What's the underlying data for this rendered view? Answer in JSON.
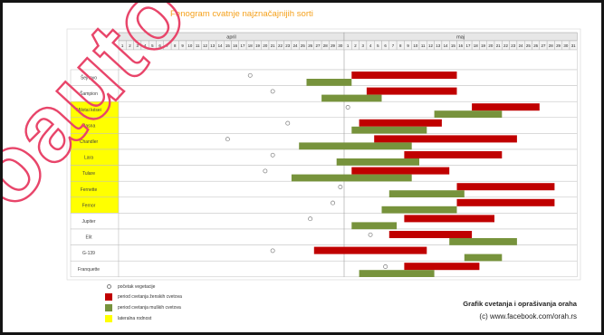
{
  "slide": {
    "title_color": "#f5a11c",
    "footer_title": "Grafik cvetanja i oprašivanja oraha",
    "footer_credit": "(c) www.facebook.com/orah.rs"
  },
  "watermark": {
    "text": "oauto",
    "color": "#e8456a"
  },
  "chart_data": {
    "type": "bar",
    "title": "Fenogram cvatnje najznačajnijih sorti",
    "months": [
      {
        "name": "april",
        "days": [
          1,
          2,
          3,
          4,
          5,
          6,
          7,
          8,
          9,
          10,
          11,
          12,
          13,
          14,
          15,
          16,
          17,
          18,
          19,
          20,
          21,
          22,
          23,
          24,
          25,
          26,
          27,
          28,
          29,
          30
        ]
      },
      {
        "name": "maj",
        "days": [
          1,
          2,
          3,
          4,
          5,
          6,
          7,
          8,
          9,
          10,
          11,
          12,
          13,
          14,
          15,
          16,
          17,
          18,
          19,
          20,
          21,
          22,
          23,
          24,
          25,
          26,
          27,
          28,
          29,
          30,
          31
        ]
      }
    ],
    "categories": [
      "Šejnovo",
      "Šampion",
      "Milotai kései",
      "Rasna",
      "Chandler",
      "Lara",
      "Tulare",
      "Fernette",
      "Fernor",
      "Jupiter",
      "Elit",
      "G-139",
      "Franquette"
    ],
    "lateral": [
      false,
      false,
      true,
      true,
      true,
      true,
      true,
      true,
      true,
      false,
      false,
      false,
      false
    ],
    "lateral_label": "lateralna rodnost",
    "lateral_color": "#ffff00",
    "series": [
      {
        "name": "početak vegetacije",
        "marker": "circle",
        "points": [
          [
            "april",
            18
          ],
          [
            "april",
            21
          ],
          [
            "maj",
            1
          ],
          [
            "april",
            23
          ],
          [
            "april",
            15
          ],
          [
            "april",
            21
          ],
          [
            "april",
            20
          ],
          [
            "april",
            30
          ],
          [
            "april",
            29
          ],
          [
            "april",
            26
          ],
          [
            "maj",
            4
          ],
          [
            "april",
            21
          ],
          [
            "maj",
            6
          ]
        ]
      },
      {
        "name": "period cvetanja ženskih cvetova",
        "color": "#c00000",
        "ranges": [
          [
            [
              "maj",
              2
            ],
            [
              "maj",
              15
            ]
          ],
          [
            [
              "maj",
              4
            ],
            [
              "maj",
              15
            ]
          ],
          [
            [
              "maj",
              18
            ],
            [
              "maj",
              26
            ]
          ],
          [
            [
              "maj",
              3
            ],
            [
              "maj",
              13
            ]
          ],
          [
            [
              "maj",
              5
            ],
            [
              "maj",
              23
            ]
          ],
          [
            [
              "maj",
              9
            ],
            [
              "maj",
              21
            ]
          ],
          [
            [
              "maj",
              2
            ],
            [
              "maj",
              14
            ]
          ],
          [
            [
              "maj",
              16
            ],
            [
              "maj",
              28
            ]
          ],
          [
            [
              "maj",
              16
            ],
            [
              "maj",
              28
            ]
          ],
          [
            [
              "maj",
              9
            ],
            [
              "maj",
              20
            ]
          ],
          [
            [
              "maj",
              7
            ],
            [
              "maj",
              17
            ]
          ],
          [
            [
              "april",
              27
            ],
            [
              "maj",
              11
            ]
          ],
          [
            [
              "maj",
              9
            ],
            [
              "maj",
              18
            ]
          ]
        ]
      },
      {
        "name": "period cvetanja muških cvetova",
        "color": "#77933c",
        "ranges": [
          [
            [
              "april",
              26
            ],
            [
              "maj",
              1
            ]
          ],
          [
            [
              "april",
              28
            ],
            [
              "maj",
              5
            ]
          ],
          [
            [
              "maj",
              13
            ],
            [
              "maj",
              21
            ]
          ],
          [
            [
              "maj",
              2
            ],
            [
              "maj",
              11
            ]
          ],
          [
            [
              "april",
              25
            ],
            [
              "maj",
              9
            ]
          ],
          [
            [
              "april",
              30
            ],
            [
              "maj",
              10
            ]
          ],
          [
            [
              "april",
              24
            ],
            [
              "maj",
              9
            ]
          ],
          [
            [
              "maj",
              7
            ],
            [
              "maj",
              16
            ]
          ],
          [
            [
              "maj",
              6
            ],
            [
              "maj",
              15
            ]
          ],
          [
            [
              "maj",
              2
            ],
            [
              "maj",
              7
            ]
          ],
          [
            [
              "maj",
              15
            ],
            [
              "maj",
              23
            ]
          ],
          [
            [
              "maj",
              17
            ],
            [
              "maj",
              21
            ]
          ],
          [
            [
              "maj",
              3
            ],
            [
              "maj",
              12
            ]
          ]
        ]
      }
    ]
  }
}
